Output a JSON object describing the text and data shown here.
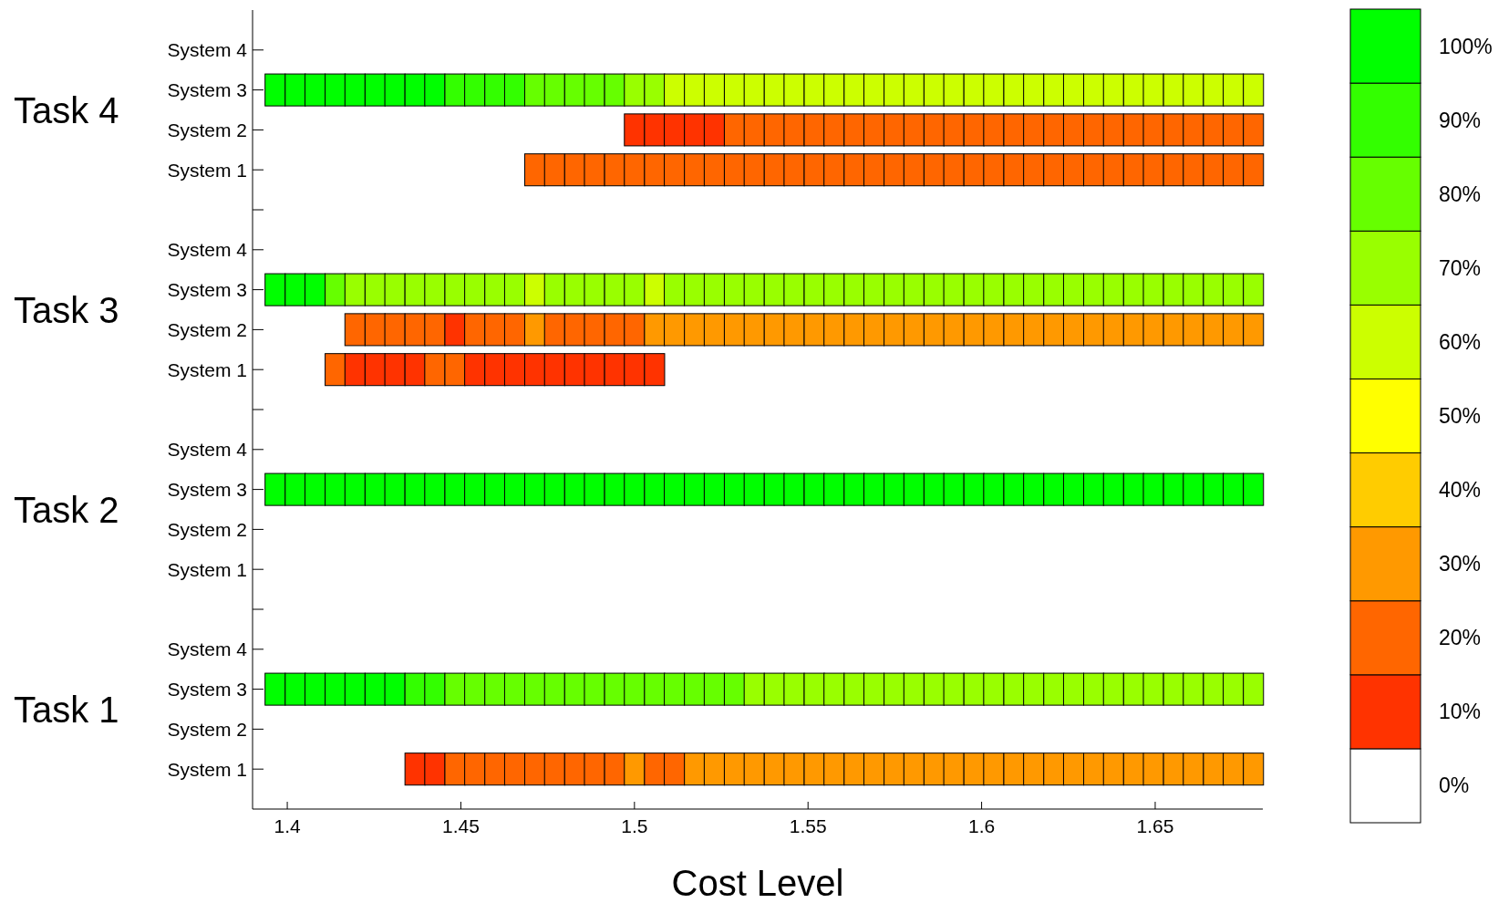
{
  "chart_data": {
    "type": "heatmap",
    "xlabel": "Cost Level",
    "annotations": [
      "Task 4",
      "Task 3",
      "Task 2",
      "Task 1"
    ],
    "x": [
      1.3965,
      1.4023,
      1.408,
      1.4138,
      1.4195,
      1.4253,
      1.431,
      1.4368,
      1.4425,
      1.4483,
      1.454,
      1.4598,
      1.4655,
      1.4713,
      1.477,
      1.4828,
      1.4885,
      1.4943,
      1.5,
      1.5058,
      1.5115,
      1.5173,
      1.523,
      1.5288,
      1.5345,
      1.5403,
      1.546,
      1.5518,
      1.5575,
      1.5633,
      1.569,
      1.5748,
      1.5805,
      1.5863,
      1.592,
      1.5978,
      1.6035,
      1.6093,
      1.615,
      1.6208,
      1.6265,
      1.6323,
      1.638,
      1.6438,
      1.6495,
      1.6553,
      1.661,
      1.6668,
      1.6725,
      1.6783
    ],
    "xlim": [
      1.39,
      1.681
    ],
    "xticks": [
      1.4,
      1.45,
      1.5,
      1.55,
      1.6,
      1.65
    ],
    "y_categories": [
      "System 4",
      "System 3",
      "System 2",
      "System 1",
      "System 4",
      "System 3",
      "System 2",
      "System 1",
      "System 4",
      "System 3",
      "System 2",
      "System 1",
      "System 4",
      "System 3",
      "System 2",
      "System 1"
    ],
    "cells": [
      [
        null,
        null,
        null,
        null,
        null,
        null,
        null,
        null,
        null,
        null,
        null,
        null,
        null,
        null,
        null,
        null,
        null,
        null,
        null,
        null,
        null,
        null,
        null,
        null,
        null,
        null,
        null,
        null,
        null,
        null,
        null,
        null,
        null,
        null,
        null,
        null,
        null,
        null,
        null,
        null,
        null,
        null,
        null,
        null,
        null,
        null,
        null,
        null,
        null,
        null
      ],
      [
        100,
        100,
        100,
        100,
        100,
        100,
        100,
        100,
        100,
        90,
        90,
        90,
        90,
        80,
        80,
        80,
        80,
        80,
        70,
        70,
        60,
        60,
        60,
        60,
        60,
        60,
        60,
        60,
        60,
        60,
        60,
        60,
        60,
        60,
        60,
        60,
        60,
        60,
        60,
        60,
        60,
        60,
        60,
        60,
        60,
        60,
        60,
        60,
        60,
        60
      ],
      [
        null,
        null,
        null,
        null,
        null,
        null,
        null,
        null,
        null,
        null,
        null,
        null,
        null,
        null,
        null,
        null,
        null,
        null,
        10,
        10,
        10,
        10,
        10,
        20,
        20,
        20,
        20,
        20,
        20,
        20,
        20,
        20,
        20,
        20,
        20,
        20,
        20,
        20,
        20,
        20,
        20,
        20,
        20,
        20,
        20,
        20,
        20,
        20,
        20,
        20
      ],
      [
        null,
        null,
        null,
        null,
        null,
        null,
        null,
        null,
        null,
        null,
        null,
        null,
        null,
        20,
        20,
        20,
        20,
        20,
        20,
        20,
        20,
        20,
        20,
        20,
        20,
        20,
        20,
        20,
        20,
        20,
        20,
        20,
        20,
        20,
        20,
        20,
        20,
        20,
        20,
        20,
        20,
        20,
        20,
        20,
        20,
        20,
        20,
        20,
        20,
        20
      ],
      [
        null,
        null,
        null,
        null,
        null,
        null,
        null,
        null,
        null,
        null,
        null,
        null,
        null,
        null,
        null,
        null,
        null,
        null,
        null,
        null,
        null,
        null,
        null,
        null,
        null,
        null,
        null,
        null,
        null,
        null,
        null,
        null,
        null,
        null,
        null,
        null,
        null,
        null,
        null,
        null,
        null,
        null,
        null,
        null,
        null,
        null,
        null,
        null,
        null,
        null
      ],
      [
        100,
        100,
        100,
        80,
        70,
        70,
        70,
        70,
        70,
        70,
        70,
        70,
        70,
        60,
        70,
        70,
        70,
        70,
        70,
        60,
        70,
        70,
        70,
        70,
        70,
        70,
        70,
        70,
        70,
        70,
        70,
        70,
        70,
        70,
        70,
        70,
        70,
        70,
        70,
        70,
        70,
        70,
        70,
        70,
        70,
        70,
        70,
        70,
        70,
        70
      ],
      [
        null,
        null,
        null,
        null,
        20,
        20,
        20,
        20,
        20,
        10,
        20,
        20,
        20,
        30,
        20,
        20,
        20,
        20,
        20,
        30,
        30,
        30,
        30,
        30,
        30,
        30,
        30,
        30,
        30,
        30,
        30,
        30,
        30,
        30,
        30,
        30,
        30,
        30,
        30,
        30,
        30,
        30,
        30,
        30,
        30,
        30,
        30,
        30,
        30,
        30
      ],
      [
        null,
        null,
        null,
        20,
        10,
        10,
        10,
        10,
        20,
        20,
        10,
        10,
        10,
        10,
        10,
        10,
        10,
        10,
        10,
        10,
        null,
        null,
        null,
        null,
        null,
        null,
        null,
        null,
        null,
        null,
        null,
        null,
        null,
        null,
        null,
        null,
        null,
        null,
        null,
        null,
        null,
        null,
        null,
        null,
        null,
        null,
        null,
        null,
        null,
        null
      ],
      [
        null,
        null,
        null,
        null,
        null,
        null,
        null,
        null,
        null,
        null,
        null,
        null,
        null,
        null,
        null,
        null,
        null,
        null,
        null,
        null,
        null,
        null,
        null,
        null,
        null,
        null,
        null,
        null,
        null,
        null,
        null,
        null,
        null,
        null,
        null,
        null,
        null,
        null,
        null,
        null,
        null,
        null,
        null,
        null,
        null,
        null,
        null,
        null,
        null,
        null
      ],
      [
        100,
        100,
        100,
        100,
        100,
        100,
        100,
        100,
        100,
        100,
        100,
        100,
        100,
        100,
        100,
        100,
        100,
        100,
        100,
        100,
        100,
        100,
        100,
        100,
        100,
        100,
        100,
        100,
        100,
        100,
        100,
        100,
        100,
        100,
        100,
        100,
        100,
        100,
        100,
        100,
        100,
        100,
        100,
        100,
        100,
        100,
        100,
        100,
        100,
        100
      ],
      [
        null,
        null,
        null,
        null,
        null,
        null,
        null,
        null,
        null,
        null,
        null,
        null,
        null,
        null,
        null,
        null,
        null,
        null,
        null,
        null,
        null,
        null,
        null,
        null,
        null,
        null,
        null,
        null,
        null,
        null,
        null,
        null,
        null,
        null,
        null,
        null,
        null,
        null,
        null,
        null,
        null,
        null,
        null,
        null,
        null,
        null,
        null,
        null,
        null,
        null
      ],
      [
        null,
        null,
        null,
        null,
        null,
        null,
        null,
        null,
        null,
        null,
        null,
        null,
        null,
        null,
        null,
        null,
        null,
        null,
        null,
        null,
        null,
        null,
        null,
        null,
        null,
        null,
        null,
        null,
        null,
        null,
        null,
        null,
        null,
        null,
        null,
        null,
        null,
        null,
        null,
        null,
        null,
        null,
        null,
        null,
        null,
        null,
        null,
        null,
        null,
        null
      ],
      [
        null,
        null,
        null,
        null,
        null,
        null,
        null,
        null,
        null,
        null,
        null,
        null,
        null,
        null,
        null,
        null,
        null,
        null,
        null,
        null,
        null,
        null,
        null,
        null,
        null,
        null,
        null,
        null,
        null,
        null,
        null,
        null,
        null,
        null,
        null,
        null,
        null,
        null,
        null,
        null,
        null,
        null,
        null,
        null,
        null,
        null,
        null,
        null,
        null,
        null
      ],
      [
        100,
        100,
        100,
        100,
        100,
        100,
        100,
        90,
        90,
        80,
        80,
        80,
        80,
        80,
        80,
        80,
        80,
        80,
        80,
        80,
        80,
        80,
        80,
        80,
        70,
        70,
        70,
        70,
        70,
        70,
        70,
        70,
        70,
        70,
        70,
        70,
        70,
        70,
        70,
        70,
        70,
        70,
        70,
        70,
        70,
        70,
        70,
        70,
        70,
        70
      ],
      [
        null,
        null,
        null,
        null,
        null,
        null,
        null,
        null,
        null,
        null,
        null,
        null,
        null,
        null,
        null,
        null,
        null,
        null,
        null,
        null,
        null,
        null,
        null,
        null,
        null,
        null,
        null,
        null,
        null,
        null,
        null,
        null,
        null,
        null,
        null,
        null,
        null,
        null,
        null,
        null,
        null,
        null,
        null,
        null,
        null,
        null,
        null,
        null,
        null,
        null
      ],
      [
        null,
        null,
        null,
        null,
        null,
        null,
        null,
        10,
        10,
        20,
        20,
        20,
        20,
        20,
        20,
        20,
        20,
        20,
        30,
        20,
        20,
        30,
        30,
        30,
        30,
        30,
        30,
        30,
        30,
        30,
        30,
        30,
        30,
        30,
        30,
        30,
        30,
        30,
        30,
        30,
        30,
        30,
        30,
        30,
        30,
        30,
        30,
        30,
        30,
        30
      ]
    ],
    "clim": [
      -5,
      105
    ],
    "cticks": [
      {
        "value": 0,
        "label": "0%"
      },
      {
        "value": 10,
        "label": "10%"
      },
      {
        "value": 20,
        "label": "20%"
      },
      {
        "value": 30,
        "label": "30%"
      },
      {
        "value": 40,
        "label": "40%"
      },
      {
        "value": 50,
        "label": "50%"
      },
      {
        "value": 60,
        "label": "60%"
      },
      {
        "value": 70,
        "label": "70%"
      },
      {
        "value": 80,
        "label": "80%"
      },
      {
        "value": 90,
        "label": "90%"
      },
      {
        "value": 100,
        "label": "100%"
      }
    ]
  }
}
